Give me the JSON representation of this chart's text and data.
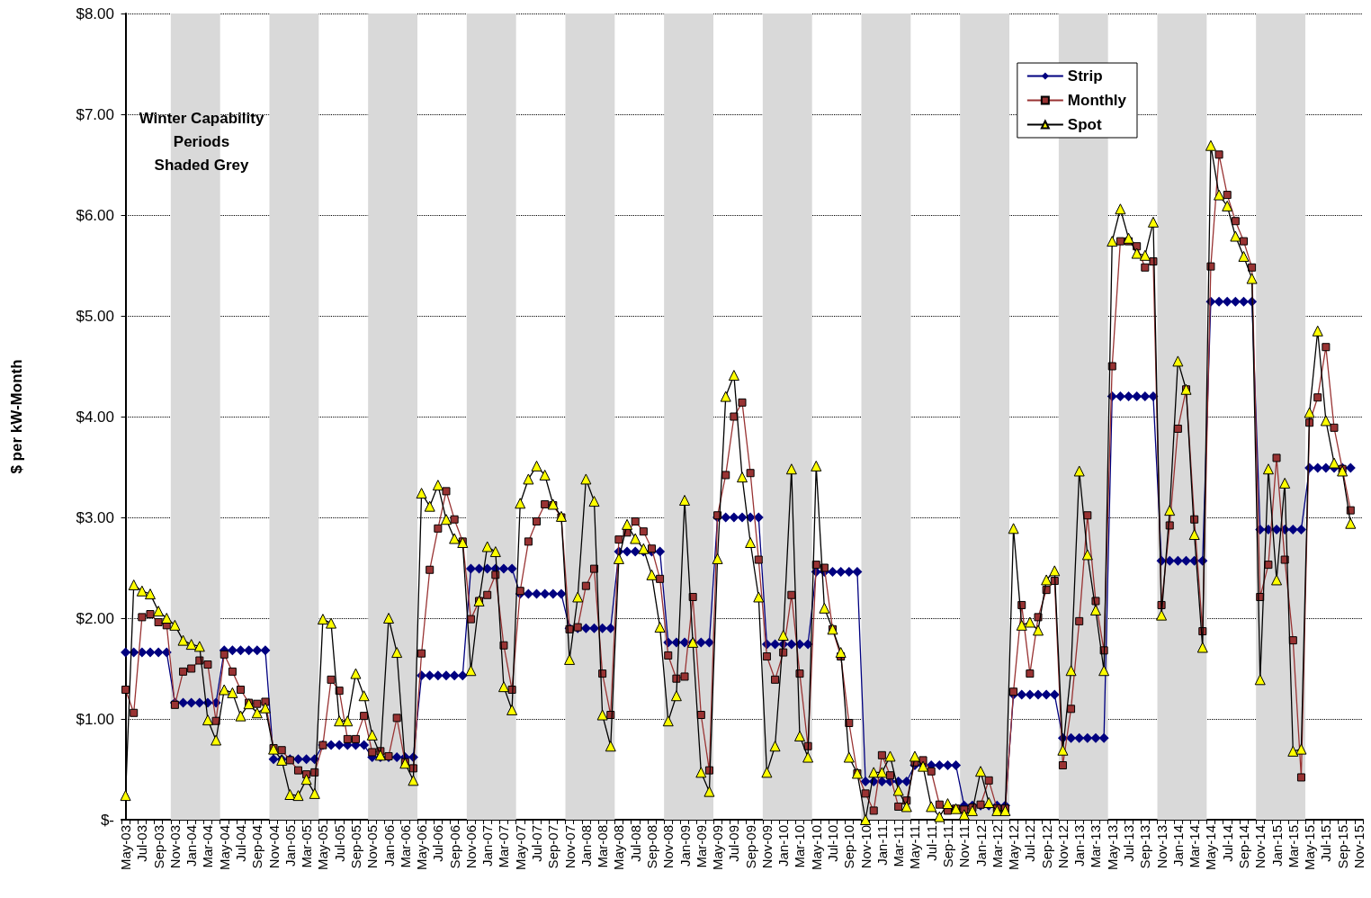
{
  "chart_data": {
    "type": "line",
    "ylabel": "$ per kW-Month",
    "annotations": [
      "Winter Capability\nPeriods\nShaded Grey"
    ],
    "categories": [
      "May-03",
      null,
      "Jul-03",
      null,
      "Sep-03",
      null,
      "Nov-03",
      null,
      "Jan-04",
      null,
      "Mar-04",
      null,
      "May-04",
      null,
      "Jul-04",
      null,
      "Sep-04",
      null,
      "Nov-04",
      null,
      "Jan-05",
      null,
      "Mar-05",
      null,
      "May-05",
      null,
      "Jul-05",
      null,
      "Sep-05",
      null,
      "Nov-05",
      null,
      "Jan-06",
      null,
      "Mar-06",
      null,
      "May-06",
      null,
      "Jul-06",
      null,
      "Sep-06",
      null,
      "Nov-06",
      null,
      "Jan-07",
      null,
      "Mar-07",
      null,
      "May-07",
      null,
      "Jul-07",
      null,
      "Sep-07",
      null,
      "Nov-07",
      null,
      "Jan-08",
      null,
      "Mar-08",
      null,
      "May-08",
      null,
      "Jul-08",
      null,
      "Sep-08",
      null,
      "Nov-08",
      null,
      "Jan-09",
      null,
      "Mar-09",
      null,
      "May-09",
      null,
      "Jul-09",
      null,
      "Sep-09",
      null,
      "Nov-09",
      null,
      "Jan-10",
      null,
      "Mar-10",
      null,
      "May-10",
      null,
      "Jul-10",
      null,
      "Sep-10",
      null,
      "Nov-10",
      null,
      "Jan-11",
      null,
      "Mar-11",
      null,
      "May-11",
      null,
      "Jul-11",
      null,
      "Sep-11",
      null,
      "Nov-11",
      null,
      "Jan-12",
      null,
      "Mar-12",
      null,
      "May-12",
      null,
      "Jul-12",
      null,
      "Sep-12",
      null,
      "Nov-12",
      null,
      "Jan-13",
      null,
      "Mar-13",
      null,
      "May-13",
      null,
      "Jul-13",
      null,
      "Sep-13",
      null,
      "Nov-13",
      null,
      "Jan-14",
      null,
      "Mar-14",
      null,
      "May-14",
      null,
      "Jul-14",
      null,
      "Sep-14",
      null,
      "Nov-14",
      null,
      "Jan-15",
      null,
      "Mar-15",
      null,
      "May-15",
      null,
      "Jul-15",
      null,
      "Sep-15",
      null,
      "Nov-15"
    ],
    "series": [
      {
        "name": "Strip",
        "color": "#000080",
        "marker": "diamond",
        "values": [
          1.66,
          1.66,
          1.66,
          1.66,
          1.66,
          1.66,
          1.16,
          1.16,
          1.16,
          1.16,
          1.16,
          1.16,
          1.68,
          1.68,
          1.68,
          1.68,
          1.68,
          1.68,
          0.6,
          0.6,
          0.6,
          0.6,
          0.6,
          0.6,
          0.74,
          0.74,
          0.74,
          0.74,
          0.74,
          0.74,
          0.62,
          0.62,
          0.62,
          0.62,
          0.62,
          0.62,
          1.43,
          1.43,
          1.43,
          1.43,
          1.43,
          1.43,
          2.49,
          2.49,
          2.49,
          2.49,
          2.49,
          2.49,
          2.24,
          2.24,
          2.24,
          2.24,
          2.24,
          2.24,
          1.9,
          1.9,
          1.9,
          1.9,
          1.9,
          1.9,
          2.66,
          2.66,
          2.66,
          2.66,
          2.66,
          2.66,
          1.76,
          1.76,
          1.76,
          1.76,
          1.76,
          1.76,
          3.0,
          3.0,
          3.0,
          3.0,
          3.0,
          3.0,
          1.74,
          1.74,
          1.74,
          1.74,
          1.74,
          1.74,
          2.46,
          2.46,
          2.46,
          2.46,
          2.46,
          2.46,
          0.38,
          0.38,
          0.38,
          0.38,
          0.38,
          0.38,
          0.54,
          0.54,
          0.54,
          0.54,
          0.54,
          0.54,
          0.14,
          0.14,
          0.14,
          0.14,
          0.14,
          0.14,
          1.24,
          1.24,
          1.24,
          1.24,
          1.24,
          1.24,
          0.81,
          0.81,
          0.81,
          0.81,
          0.81,
          0.81,
          4.2,
          4.2,
          4.2,
          4.2,
          4.2,
          4.2,
          2.57,
          2.57,
          2.57,
          2.57,
          2.57,
          2.57,
          5.14,
          5.14,
          5.14,
          5.14,
          5.14,
          5.14,
          2.88,
          2.88,
          2.88,
          2.88,
          2.88,
          2.88,
          3.49,
          3.49,
          3.49,
          3.49,
          3.49,
          3.49,
          null
        ]
      },
      {
        "name": "Monthly",
        "color": "#993333",
        "marker": "square",
        "values": [
          1.29,
          1.06,
          2.01,
          2.04,
          1.96,
          1.93,
          1.14,
          1.47,
          1.5,
          1.58,
          1.54,
          0.98,
          1.64,
          1.47,
          1.29,
          1.16,
          1.15,
          1.17,
          0.71,
          0.69,
          0.59,
          0.49,
          0.45,
          0.47,
          0.74,
          1.39,
          1.28,
          0.8,
          0.8,
          1.03,
          0.67,
          0.68,
          0.63,
          1.01,
          0.57,
          0.51,
          1.65,
          2.48,
          2.89,
          3.26,
          2.98,
          2.76,
          1.99,
          2.17,
          2.23,
          2.43,
          1.73,
          1.29,
          2.27,
          2.76,
          2.96,
          3.13,
          3.12,
          3.0,
          1.89,
          1.91,
          2.32,
          2.49,
          1.45,
          1.04,
          2.78,
          2.85,
          2.96,
          2.86,
          2.69,
          2.39,
          1.63,
          1.4,
          1.42,
          2.21,
          1.04,
          0.49,
          3.02,
          3.42,
          4.0,
          4.14,
          3.44,
          2.58,
          1.62,
          1.39,
          1.66,
          2.23,
          1.45,
          0.73,
          2.53,
          2.5,
          1.89,
          1.62,
          0.96,
          0.46,
          0.26,
          0.09,
          0.64,
          0.44,
          0.13,
          0.19,
          0.57,
          0.59,
          0.48,
          0.15,
          0.09,
          0.11,
          0.1,
          0.12,
          0.15,
          0.39,
          0.11,
          0.11,
          1.27,
          2.13,
          1.45,
          2.01,
          2.28,
          2.37,
          0.54,
          1.1,
          1.97,
          3.02,
          2.17,
          1.68,
          4.5,
          5.74,
          5.74,
          5.69,
          5.48,
          5.54,
          2.13,
          2.92,
          3.88,
          4.27,
          2.98,
          1.87,
          5.49,
          6.6,
          6.2,
          5.94,
          5.74,
          5.48,
          2.21,
          2.53,
          3.59,
          2.58,
          1.78,
          0.42,
          3.94,
          4.19,
          4.69,
          3.89,
          3.48,
          3.07,
          null
        ]
      },
      {
        "name": "Spot",
        "color": "#ffff00",
        "marker": "triangle",
        "values": [
          0.24,
          2.33,
          2.27,
          2.24,
          2.07,
          2.0,
          1.93,
          1.78,
          1.74,
          1.72,
          0.99,
          0.79,
          1.29,
          1.26,
          1.03,
          1.15,
          1.06,
          1.11,
          0.7,
          0.59,
          0.25,
          0.24,
          0.4,
          0.26,
          1.99,
          1.95,
          0.98,
          0.98,
          1.45,
          1.23,
          0.84,
          0.64,
          2.0,
          1.66,
          0.56,
          0.39,
          3.24,
          3.11,
          3.32,
          2.98,
          2.79,
          2.75,
          1.48,
          2.17,
          2.71,
          2.66,
          1.32,
          1.09,
          3.14,
          3.38,
          3.51,
          3.42,
          3.13,
          3.01,
          1.59,
          2.21,
          3.38,
          3.16,
          1.04,
          0.73,
          2.59,
          2.93,
          2.79,
          2.69,
          2.43,
          1.91,
          0.98,
          1.23,
          3.17,
          1.76,
          0.47,
          0.28,
          2.59,
          4.2,
          4.41,
          3.4,
          2.75,
          2.21,
          0.47,
          0.73,
          1.83,
          3.48,
          0.83,
          0.62,
          3.51,
          2.1,
          1.89,
          1.66,
          0.62,
          0.46,
          0.0,
          0.47,
          0.47,
          0.63,
          0.29,
          0.13,
          0.63,
          0.53,
          0.13,
          0.03,
          0.16,
          0.11,
          0.05,
          0.09,
          0.48,
          0.17,
          0.09,
          0.09,
          2.89,
          1.93,
          1.96,
          1.88,
          2.38,
          2.47,
          0.69,
          1.48,
          3.46,
          2.63,
          2.08,
          1.48,
          5.74,
          6.06,
          5.77,
          5.62,
          5.6,
          5.93,
          2.03,
          3.07,
          4.55,
          4.27,
          2.83,
          1.71,
          6.69,
          6.2,
          6.09,
          5.79,
          5.59,
          5.37,
          1.39,
          3.48,
          2.38,
          3.34,
          0.68,
          0.7,
          4.04,
          4.85,
          3.96,
          3.54,
          3.46,
          2.94,
          null
        ]
      }
    ],
    "ylim": [
      0,
      8
    ],
    "yticks": [
      {
        "value": 0,
        "label": "$-"
      },
      {
        "value": 1,
        "label": "$1.00"
      },
      {
        "value": 2,
        "label": "$2.00"
      },
      {
        "value": 3,
        "label": "$3.00"
      },
      {
        "value": 4,
        "label": "$4.00"
      },
      {
        "value": 5,
        "label": "$5.00"
      },
      {
        "value": 6,
        "label": "$6.00"
      },
      {
        "value": 7,
        "label": "$7.00"
      },
      {
        "value": 8,
        "label": "$8.00"
      }
    ],
    "bands": [
      {
        "axis": "x",
        "from": "Nov-03",
        "to": "May-04",
        "color": "#d9d9d9"
      },
      {
        "axis": "x",
        "from": "Nov-04",
        "to": "May-05",
        "color": "#d9d9d9"
      },
      {
        "axis": "x",
        "from": "Nov-05",
        "to": "May-06",
        "color": "#d9d9d9"
      },
      {
        "axis": "x",
        "from": "Nov-06",
        "to": "May-07",
        "color": "#d9d9d9"
      },
      {
        "axis": "x",
        "from": "Nov-07",
        "to": "May-08",
        "color": "#d9d9d9"
      },
      {
        "axis": "x",
        "from": "Nov-08",
        "to": "May-09",
        "color": "#d9d9d9"
      },
      {
        "axis": "x",
        "from": "Nov-09",
        "to": "May-10",
        "color": "#d9d9d9"
      },
      {
        "axis": "x",
        "from": "Nov-10",
        "to": "May-11",
        "color": "#d9d9d9"
      },
      {
        "axis": "x",
        "from": "Nov-11",
        "to": "May-12",
        "color": "#d9d9d9"
      },
      {
        "axis": "x",
        "from": "Nov-12",
        "to": "May-13",
        "color": "#d9d9d9"
      },
      {
        "axis": "x",
        "from": "Nov-13",
        "to": "May-14",
        "color": "#d9d9d9"
      },
      {
        "axis": "x",
        "from": "Nov-14",
        "to": "May-15",
        "color": "#d9d9d9"
      }
    ],
    "grid": "y",
    "legend": "top right",
    "line_style": "solid"
  }
}
